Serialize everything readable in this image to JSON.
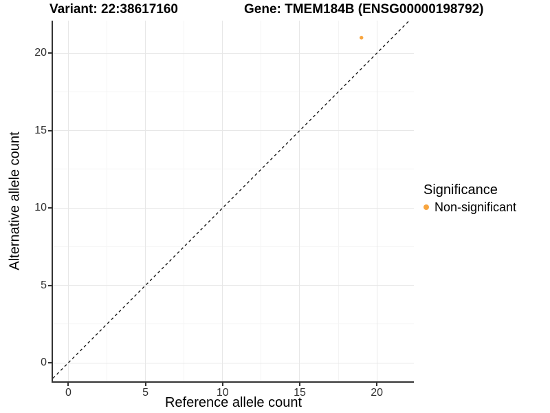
{
  "titles": {
    "variant": "Variant: 22:38617160",
    "gene": "Gene: TMEM184B (ENSG00000198792)"
  },
  "chart_data": {
    "type": "scatter",
    "title_left": "Variant: 22:38617160",
    "title_right": "Gene: TMEM184B (ENSG00000198792)",
    "xlabel": "Reference allele count",
    "ylabel": "Alternative allele count",
    "xlim": [
      -1.0,
      22.4
    ],
    "ylim": [
      -1.2,
      22.1
    ],
    "xticks": [
      0,
      5,
      10,
      15,
      20
    ],
    "yticks": [
      0,
      5,
      10,
      15,
      20
    ],
    "minor_xticks": [
      2.5,
      7.5,
      12.5,
      17.5
    ],
    "minor_yticks": [
      2.5,
      7.5,
      12.5,
      17.5
    ],
    "grid": true,
    "reference_line": {
      "type": "identity",
      "equation": "y = x",
      "style": "dashed",
      "color": "#1a1a1a"
    },
    "series": [
      {
        "name": "Non-significant",
        "color": "#F8A53E",
        "points": [
          {
            "x": 19,
            "y": 21
          }
        ]
      }
    ],
    "legend": {
      "title": "Significance",
      "position": "right",
      "entries": [
        {
          "label": "Non-significant",
          "color": "#F8A53E"
        }
      ]
    }
  }
}
